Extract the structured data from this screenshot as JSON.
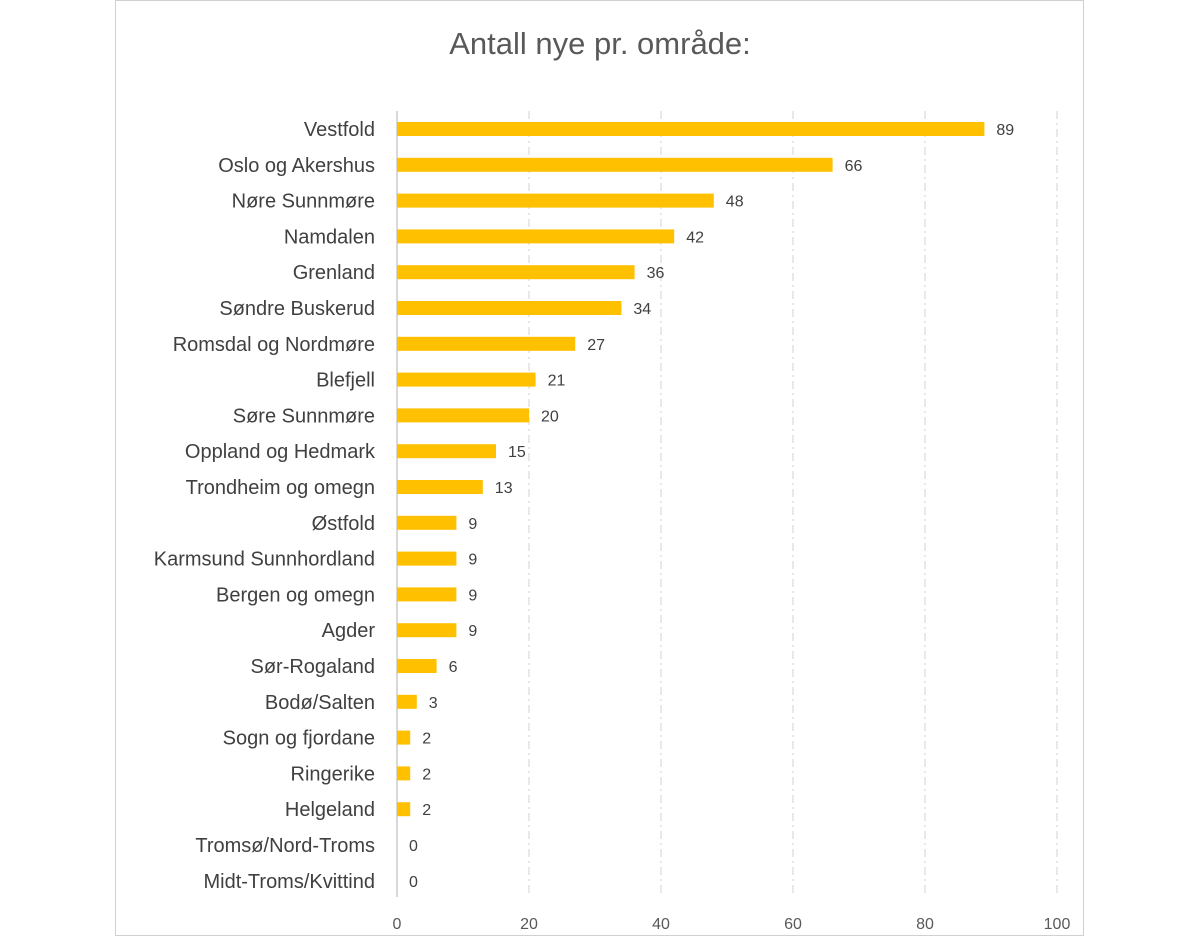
{
  "chart_data": {
    "type": "bar",
    "orientation": "horizontal",
    "title": "Antall nye pr. område:",
    "categories": [
      "Vestfold",
      "Oslo og Akershus",
      "Nøre Sunnmøre",
      "Namdalen",
      "Grenland",
      "Søndre Buskerud",
      "Romsdal og Nordmøre",
      "Blefjell",
      "Søre Sunnmøre",
      "Oppland og Hedmark",
      "Trondheim og omegn",
      "Østfold",
      "Karmsund Sunnhordland",
      "Bergen og omegn",
      "Agder",
      "Sør-Rogaland",
      "Bodø/Salten",
      "Sogn og fjordane",
      "Ringerike",
      "Helgeland",
      "Tromsø/Nord-Troms",
      "Midt-Troms/Kvittind"
    ],
    "values": [
      89,
      66,
      48,
      42,
      36,
      34,
      27,
      21,
      20,
      15,
      13,
      9,
      9,
      9,
      9,
      6,
      3,
      2,
      2,
      2,
      0,
      0
    ],
    "xlim": [
      0,
      100
    ],
    "xticks": [
      0,
      20,
      40,
      60,
      80,
      100
    ],
    "xlabel": "",
    "ylabel": "",
    "grid": true,
    "data_labels": true,
    "legend": "none",
    "bar_color": "#FFC000",
    "grid_color": "#d9d9d9",
    "text_color": "#404040"
  }
}
